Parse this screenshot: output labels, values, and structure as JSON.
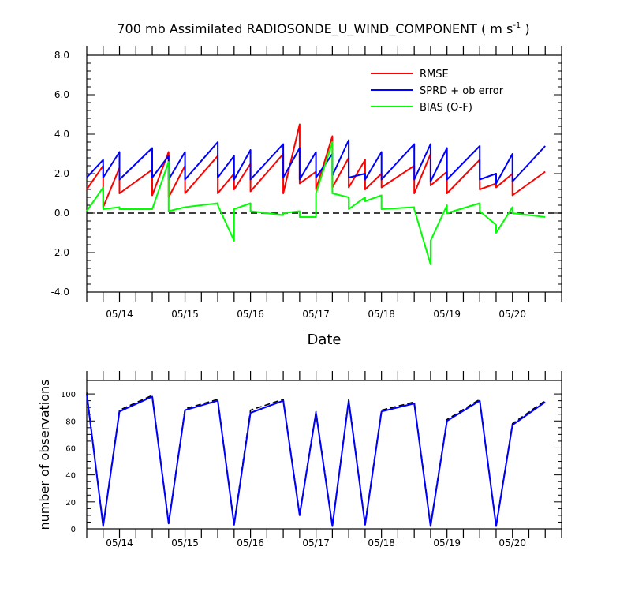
{
  "chart_data": [
    {
      "type": "line",
      "title": "700 mb Assimilated RADIOSONDE_U_WIND_COMPONENT ( m s",
      "title_sup": "-1",
      "title_end": " )",
      "xlabel": "Date",
      "ylabel": "",
      "ylim": [
        -4.0,
        8.0
      ],
      "yticks": [
        "8.0",
        "6.0",
        "4.0",
        "2.0",
        "0.0",
        "-2.0",
        "-4.0"
      ],
      "ytick_values": [
        8,
        6,
        4,
        2,
        0,
        -2,
        -4
      ],
      "xlim": [
        0,
        29
      ],
      "xtick_labels": [
        "05/14",
        "05/15",
        "05/16",
        "05/17",
        "05/18",
        "05/19",
        "05/20"
      ],
      "xtick_positions": [
        2,
        6,
        10,
        14,
        18,
        22,
        26
      ],
      "zero_line": true,
      "legend_position": "top-right",
      "x": [
        0,
        1,
        1,
        2,
        2,
        4,
        4,
        5,
        5,
        6,
        6,
        8,
        8,
        9,
        9,
        10,
        10,
        12,
        12,
        13,
        13,
        14,
        14,
        15,
        15,
        16,
        16,
        17,
        17,
        18,
        18,
        20,
        20,
        21,
        21,
        22,
        22,
        24,
        24,
        25,
        25,
        26,
        26,
        28
      ],
      "series": [
        {
          "name": "RMSE",
          "color": "#ff0000",
          "values": [
            1.2,
            2.4,
            0.3,
            2.3,
            1.0,
            2.2,
            0.9,
            3.1,
            0.8,
            2.4,
            1.0,
            2.9,
            1.0,
            2.0,
            1.2,
            2.5,
            1.1,
            3.0,
            1.0,
            4.5,
            1.5,
            2.1,
            1.2,
            3.9,
            1.3,
            2.8,
            1.3,
            2.7,
            1.2,
            2.0,
            1.3,
            2.4,
            1.0,
            3.0,
            1.4,
            2.1,
            1.0,
            2.7,
            1.2,
            1.5,
            1.3,
            2.0,
            0.9,
            2.1
          ]
        },
        {
          "name": "SPRD + ob error",
          "color": "#0000ff",
          "values": [
            1.8,
            2.7,
            1.8,
            3.1,
            1.7,
            3.3,
            1.8,
            2.9,
            1.7,
            3.1,
            1.7,
            3.6,
            1.8,
            2.9,
            1.7,
            3.2,
            1.7,
            3.5,
            1.8,
            3.3,
            1.7,
            3.1,
            1.8,
            3.0,
            1.9,
            3.7,
            1.8,
            2.0,
            1.7,
            3.1,
            1.7,
            3.5,
            1.7,
            3.5,
            1.6,
            3.3,
            1.7,
            3.4,
            1.7,
            2.0,
            1.5,
            3.0,
            1.6,
            3.4
          ]
        },
        {
          "name": "BIAS (O-F)",
          "color": "#00ff00",
          "values": [
            0.1,
            1.3,
            0.2,
            0.3,
            0.2,
            0.2,
            0.2,
            2.6,
            0.1,
            0.3,
            0.3,
            0.5,
            0.4,
            -1.4,
            0.2,
            0.5,
            0.1,
            -0.1,
            0.0,
            0.1,
            -0.2,
            -0.2,
            1.0,
            3.6,
            1.0,
            0.8,
            0.2,
            0.8,
            0.6,
            0.9,
            0.2,
            0.3,
            0.2,
            -2.6,
            -1.4,
            0.4,
            0.0,
            0.5,
            0.1,
            -0.6,
            -1.0,
            0.3,
            0.0,
            -0.2
          ]
        }
      ]
    },
    {
      "type": "line",
      "title": "",
      "xlabel": "",
      "ylabel": "number of observations",
      "ylim": [
        0,
        110
      ],
      "yticks": [
        "0",
        "20",
        "40",
        "60",
        "80",
        "100"
      ],
      "ytick_values": [
        0,
        20,
        40,
        60,
        80,
        100
      ],
      "xlim": [
        0,
        29
      ],
      "xtick_labels": [
        "05/14",
        "05/15",
        "05/16",
        "05/17",
        "05/18",
        "05/19",
        "05/20"
      ],
      "xtick_positions": [
        2,
        6,
        10,
        14,
        18,
        22,
        26
      ],
      "x": [
        0,
        1,
        2,
        4,
        5,
        6,
        8,
        9,
        10,
        12,
        13,
        14,
        15,
        16,
        17,
        18,
        20,
        21,
        22,
        24,
        25,
        26,
        28
      ],
      "series": [
        {
          "name": "",
          "color": "#0000ff",
          "dash": false,
          "values": [
            100,
            2,
            87,
            98,
            4,
            88,
            95,
            3,
            86,
            95,
            10,
            86,
            2,
            95,
            3,
            87,
            93,
            2,
            80,
            95,
            2,
            77,
            94
          ]
        },
        {
          "name": "",
          "color": "#000000",
          "dash": true,
          "values": [
            101,
            3,
            88,
            99,
            5,
            89,
            96,
            4,
            88,
            96,
            11,
            87,
            3,
            96,
            4,
            88,
            94,
            3,
            81,
            96,
            3,
            78,
            95
          ]
        }
      ]
    }
  ]
}
